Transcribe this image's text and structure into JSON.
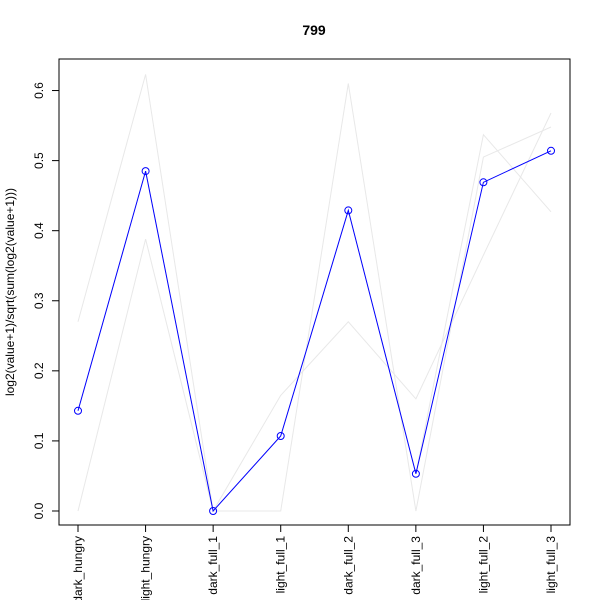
{
  "chart_data": {
    "type": "line",
    "title": "799",
    "xlabel": "",
    "ylabel": "log2(value+1)/sqrt(sum(log2(value+1)))",
    "categories": [
      "dark_hungry",
      "light_hungry",
      "dark_full_1",
      "light_full_1",
      "dark_full_2",
      "dark_full_3",
      "light_full_2",
      "light_full_3"
    ],
    "ylim": [
      -0.02,
      0.645
    ],
    "yticks": [
      0.0,
      0.1,
      0.2,
      0.3,
      0.4,
      0.5,
      0.6
    ],
    "ytick_labels": [
      "0.0",
      "0.1",
      "0.2",
      "0.3",
      "0.4",
      "0.5",
      "0.6"
    ],
    "grid": false,
    "legend": "none",
    "series": [
      {
        "values": [
          0.143,
          0.485,
          0.0,
          0.107,
          0.429,
          0.053,
          0.469,
          0.514
        ],
        "color": "#0000ff",
        "markers": true
      }
    ],
    "background_series": [
      {
        "values": [
          0.27,
          0.623,
          0.0,
          0.0,
          0.61,
          0.0,
          0.505,
          0.548
        ],
        "color": "#e8e8e8"
      },
      {
        "values": [
          0.0,
          0.388,
          0.0,
          0.165,
          0.27,
          0.16,
          0.365,
          0.568
        ],
        "color": "#e8e8e8"
      },
      {
        "values": [
          0.143,
          0.485,
          0.0,
          0.107,
          0.429,
          0.053,
          0.537,
          0.427
        ],
        "color": "#e8e8e8"
      }
    ]
  }
}
